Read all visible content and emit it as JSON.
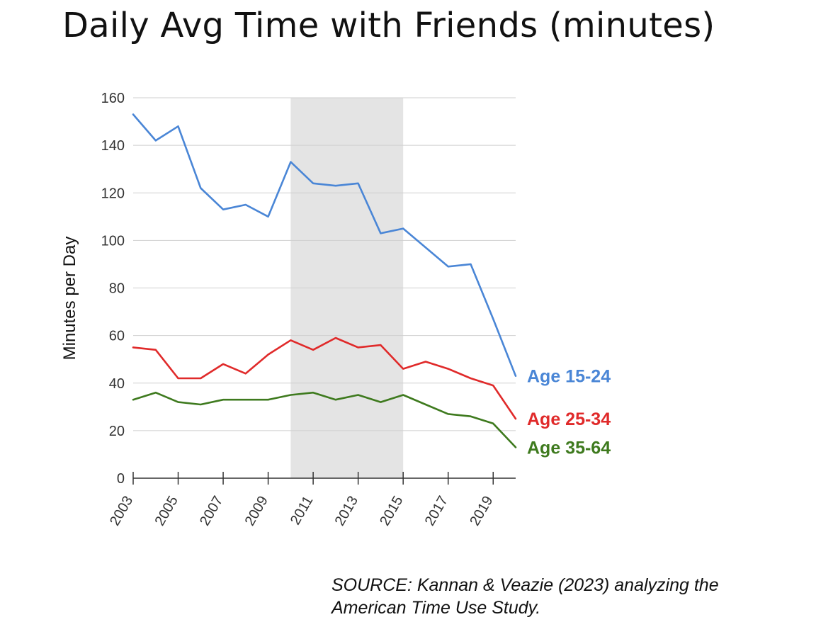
{
  "title": "Daily Avg Time with Friends (minutes)",
  "source_line1": "SOURCE: Kannan & Veazie (2023) analyzing the",
  "source_line2": "American Time Use Study.",
  "chart_data": {
    "type": "line",
    "title": "Daily Avg Time with Friends (minutes)",
    "xlabel": "",
    "ylabel": "Minutes per Day",
    "x": [
      2003,
      2004,
      2005,
      2006,
      2007,
      2008,
      2009,
      2010,
      2011,
      2012,
      2013,
      2014,
      2015,
      2016,
      2017,
      2018,
      2019,
      2020
    ],
    "xticks": [
      "2003",
      "2005",
      "2007",
      "2009",
      "2011",
      "2013",
      "2015",
      "2017",
      "2019"
    ],
    "ylim": [
      0,
      160
    ],
    "yticks": [
      0,
      20,
      40,
      60,
      80,
      100,
      120,
      140,
      160
    ],
    "grid": true,
    "shaded_region": [
      2010,
      2015
    ],
    "series": [
      {
        "name": "Age 15-24",
        "color": "#4a86d6",
        "values": [
          153,
          142,
          148,
          122,
          113,
          115,
          110,
          133,
          124,
          123,
          124,
          103,
          105,
          97,
          89,
          90,
          67,
          43
        ]
      },
      {
        "name": "Age 25-34",
        "color": "#e02a2a",
        "values": [
          55,
          54,
          42,
          42,
          48,
          44,
          52,
          58,
          54,
          59,
          55,
          56,
          46,
          49,
          46,
          42,
          39,
          25
        ]
      },
      {
        "name": "Age 35-64",
        "color": "#3e7a1e",
        "values": [
          33,
          36,
          32,
          31,
          33,
          33,
          33,
          35,
          36,
          33,
          35,
          32,
          35,
          31,
          27,
          26,
          23,
          13
        ]
      }
    ]
  }
}
